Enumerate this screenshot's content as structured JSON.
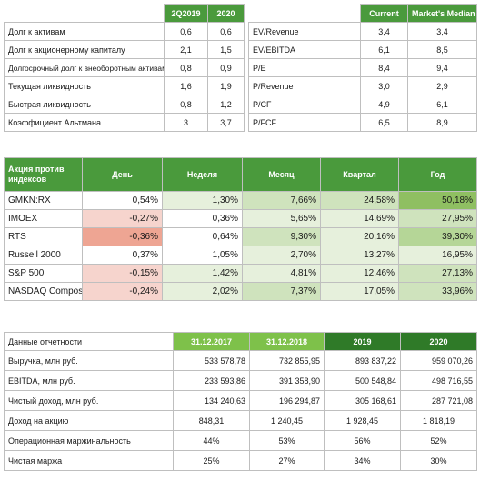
{
  "debt": {
    "headers": [
      "2Q2019",
      "2020"
    ],
    "rows": [
      {
        "label": "Долг к активам",
        "v1": "0,6",
        "v2": "0,6"
      },
      {
        "label": "Долг к акционерному капиталу",
        "v1": "2,1",
        "v2": "1,5"
      },
      {
        "label": "Долгосрочный долг к внеоборотным активам",
        "v1": "0,8",
        "v2": "0,9"
      },
      {
        "label": "Текущая ликвидность",
        "v1": "1,6",
        "v2": "1,9"
      },
      {
        "label": "Быстрая ликвидность",
        "v1": "0,8",
        "v2": "1,2"
      },
      {
        "label": "Коэффициент Альтмана",
        "v1": "3",
        "v2": "3,7"
      }
    ]
  },
  "multiples": {
    "headers": [
      "Current",
      "Market's Median"
    ],
    "rows": [
      {
        "label": "EV/Revenue",
        "v1": "3,4",
        "v2": "3,4"
      },
      {
        "label": "EV/EBITDA",
        "v1": "6,1",
        "v2": "8,5"
      },
      {
        "label": "P/E",
        "v1": "8,4",
        "v2": "9,4"
      },
      {
        "label": "P/Revenue",
        "v1": "3,0",
        "v2": "2,9"
      },
      {
        "label": "P/CF",
        "v1": "4,9",
        "v2": "6,1"
      },
      {
        "label": "P/FCF",
        "v1": "6,5",
        "v2": "8,9"
      }
    ]
  },
  "indices": {
    "headers": [
      "Акция против индексов",
      "День",
      "Неделя",
      "Месяц",
      "Квартал",
      "Год"
    ],
    "rows": [
      {
        "name": "GMKN:RX",
        "cells": [
          {
            "v": "0,54%",
            "bg": "#ffffff"
          },
          {
            "v": "1,30%",
            "bg": "#e6f0dc"
          },
          {
            "v": "7,66%",
            "bg": "#cfe3bd"
          },
          {
            "v": "24,58%",
            "bg": "#cfe3bd"
          },
          {
            "v": "50,18%",
            "bg": "#8fbf62"
          }
        ]
      },
      {
        "name": "IMOEX",
        "cells": [
          {
            "v": "-0,27%",
            "bg": "#f6d4cd"
          },
          {
            "v": "0,36%",
            "bg": "#ffffff"
          },
          {
            "v": "5,65%",
            "bg": "#e6f0dc"
          },
          {
            "v": "14,69%",
            "bg": "#e6f0dc"
          },
          {
            "v": "27,95%",
            "bg": "#cfe3bd"
          }
        ]
      },
      {
        "name": "RTS",
        "cells": [
          {
            "v": "-0,36%",
            "bg": "#eea593"
          },
          {
            "v": "0,64%",
            "bg": "#ffffff"
          },
          {
            "v": "9,30%",
            "bg": "#cfe3bd"
          },
          {
            "v": "20,16%",
            "bg": "#e6f0dc"
          },
          {
            "v": "39,30%",
            "bg": "#b5d697"
          }
        ]
      },
      {
        "name": "Russell 2000",
        "cells": [
          {
            "v": "0,37%",
            "bg": "#ffffff"
          },
          {
            "v": "1,05%",
            "bg": "#ffffff"
          },
          {
            "v": "2,70%",
            "bg": "#e6f0dc"
          },
          {
            "v": "13,27%",
            "bg": "#e6f0dc"
          },
          {
            "v": "16,95%",
            "bg": "#e6f0dc"
          }
        ]
      },
      {
        "name": "S&P 500",
        "cells": [
          {
            "v": "-0,15%",
            "bg": "#f6d4cd"
          },
          {
            "v": "1,42%",
            "bg": "#e6f0dc"
          },
          {
            "v": "4,81%",
            "bg": "#e6f0dc"
          },
          {
            "v": "12,46%",
            "bg": "#e6f0dc"
          },
          {
            "v": "27,13%",
            "bg": "#cfe3bd"
          }
        ]
      },
      {
        "name": "NASDAQ Composite",
        "cells": [
          {
            "v": "-0,24%",
            "bg": "#f6d4cd"
          },
          {
            "v": "2,02%",
            "bg": "#e6f0dc"
          },
          {
            "v": "7,37%",
            "bg": "#cfe3bd"
          },
          {
            "v": "17,05%",
            "bg": "#e6f0dc"
          },
          {
            "v": "33,96%",
            "bg": "#cfe3bd"
          }
        ]
      }
    ]
  },
  "financials": {
    "label_header": "Данные отчетности",
    "headers": [
      {
        "text": "31.12.2017",
        "style": "light"
      },
      {
        "text": "31.12.2018",
        "style": "light"
      },
      {
        "text": "2019",
        "style": "dark"
      },
      {
        "text": "2020",
        "style": "dark"
      }
    ],
    "rows": [
      {
        "label": "Выручка, млн руб.",
        "align": "r",
        "values": [
          "533 578,78",
          "732 855,95",
          "893 837,22",
          "959 070,26"
        ]
      },
      {
        "label": "EBITDA, млн руб.",
        "align": "r",
        "values": [
          "233 593,86",
          "391 358,90",
          "500 548,84",
          "498 716,55"
        ]
      },
      {
        "label": "Чистый доход, млн руб.",
        "align": "r",
        "values": [
          "134 240,63",
          "196 294,87",
          "305 168,61",
          "287 721,08"
        ]
      },
      {
        "label": "Доход на акцию",
        "align": "c",
        "values": [
          "848,31",
          "1 240,45",
          "1 928,45",
          "1 818,19"
        ]
      },
      {
        "label": "Операционная маржинальность",
        "align": "c",
        "values": [
          "44%",
          "53%",
          "56%",
          "52%"
        ]
      },
      {
        "label": "Чистая маржа",
        "align": "c",
        "values": [
          "25%",
          "27%",
          "34%",
          "30%"
        ]
      }
    ]
  }
}
